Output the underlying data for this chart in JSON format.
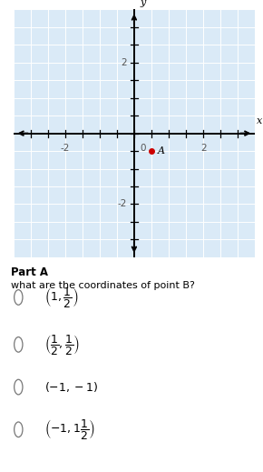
{
  "fig_width": 2.9,
  "fig_height": 5.19,
  "dpi": 100,
  "grid_bg_color": "#daeaf7",
  "grid_color": "#ffffff",
  "axis_color": "#000000",
  "tick_label_color": "#555555",
  "point_A": [
    0.5,
    -0.5
  ],
  "point_A_color": "#cc0000",
  "point_A_label": "A",
  "xlim": [
    -3.5,
    3.5
  ],
  "ylim": [
    -3.5,
    3.5
  ],
  "xtick_labels": [
    [
      -2,
      "-2"
    ],
    [
      0,
      "0"
    ],
    [
      2,
      "2"
    ]
  ],
  "ytick_labels": [
    [
      2,
      "2"
    ],
    [
      -2,
      "-2"
    ]
  ],
  "xlabel": "x",
  "ylabel": "y",
  "part_label": "Part A",
  "question_text": "what are the coordinates of point B?",
  "choice_display": [
    "$\\left(1, \\dfrac{1}{2}\\right)$",
    "$\\left(\\dfrac{1}{2}, \\dfrac{1}{2}\\right)$",
    "$(-1, -1)$",
    "$\\left(-1, 1\\dfrac{1}{2}\\right)$"
  ]
}
